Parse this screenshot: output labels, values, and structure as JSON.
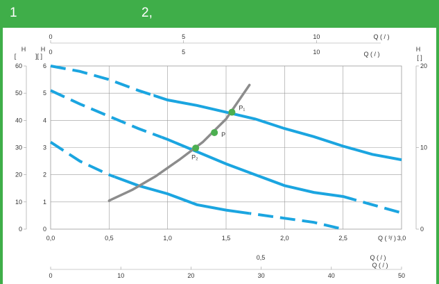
{
  "header": {
    "label_1": "1",
    "label_2": "2,"
  },
  "colors": {
    "header": "#3fae49",
    "curve": "#1ba5e0",
    "system": "#8c8c8c",
    "point": "#4caf50",
    "grid": "#999999"
  },
  "chart_data": {
    "type": "line",
    "title": "",
    "axes": {
      "x_bottom": {
        "label": "Q ( ³/ )",
        "range": [
          0,
          3
        ],
        "ticks": [
          "0,0",
          "0,5",
          "1,0",
          "1,5",
          "2,0",
          "2,5",
          "3,0"
        ]
      },
      "x_top": {
        "label": "Q (   /      )",
        "range": [
          0,
          13.2
        ],
        "ticks": [
          "0",
          "5",
          "10"
        ]
      },
      "x_top2": {
        "label": "Q (  /  )",
        "range": [
          0,
          13.2
        ],
        "ticks": [
          "0",
          "5",
          "10"
        ]
      },
      "x_bottom2": {
        "label": "Q (  /  )",
        "range": [
          0,
          50
        ],
        "ticks": [
          "0",
          "10",
          "20",
          "30",
          "40",
          "50"
        ]
      },
      "x_bottom3": {
        "label": "0,5"
      },
      "y_left_outer": {
        "label": "H\n[",
        "range": [
          0,
          60
        ],
        "ticks": [
          "0",
          "10",
          "20",
          "30",
          "40",
          "50",
          "60"
        ]
      },
      "y_left_inner": {
        "label": "H\n][ ]",
        "range": [
          0,
          6
        ],
        "ticks": [
          "0",
          "1",
          "2",
          "3",
          "4",
          "5",
          "6"
        ]
      },
      "y_right": {
        "label": "H\n[ ]",
        "range": [
          0,
          20
        ],
        "ticks": [
          "0",
          "10",
          "20"
        ]
      }
    },
    "grid": true,
    "series": [
      {
        "kind": "pump-curve",
        "x": [
          0.0,
          0.25,
          0.5,
          0.75,
          1.0,
          1.25,
          1.5,
          1.75,
          2.0,
          2.25,
          2.5,
          2.75,
          3.0
        ],
        "y": [
          6.0,
          5.8,
          5.5,
          5.1,
          4.75,
          4.55,
          4.3,
          4.05,
          3.7,
          3.4,
          3.05,
          2.75,
          2.55
        ],
        "dashed_until_x": 0.88
      },
      {
        "kind": "pump-curve",
        "x": [
          0.0,
          0.25,
          0.5,
          0.75,
          1.0,
          1.25,
          1.5,
          1.75,
          2.0,
          2.25,
          2.5,
          2.75,
          3.0
        ],
        "y": [
          5.1,
          4.6,
          4.15,
          3.7,
          3.3,
          2.85,
          2.4,
          2.0,
          1.6,
          1.35,
          1.2,
          0.9,
          0.6
        ],
        "dashed_until_x": 0.95,
        "dashed_from_x": 2.5
      },
      {
        "kind": "pump-curve",
        "x": [
          0.0,
          0.25,
          0.5,
          0.75,
          1.0,
          1.25,
          1.5,
          1.75,
          2.0,
          2.25,
          2.5
        ],
        "y": [
          3.2,
          2.5,
          2.0,
          1.6,
          1.3,
          0.9,
          0.7,
          0.55,
          0.4,
          0.25,
          0.0
        ],
        "dashed_until_x": 0.55,
        "dashed_from_x": 1.7
      },
      {
        "kind": "system-curve",
        "x": [
          0.5,
          0.7,
          0.9,
          1.1,
          1.3,
          1.5,
          1.7
        ],
        "y": [
          1.05,
          1.45,
          1.95,
          2.55,
          3.2,
          4.05,
          5.3
        ]
      }
    ],
    "points": [
      {
        "label": "P₁",
        "x": 1.55,
        "y": 4.3
      },
      {
        "label": "P",
        "x": 1.4,
        "y": 3.55
      },
      {
        "label": "P₂",
        "x": 1.24,
        "y": 2.98
      }
    ]
  }
}
